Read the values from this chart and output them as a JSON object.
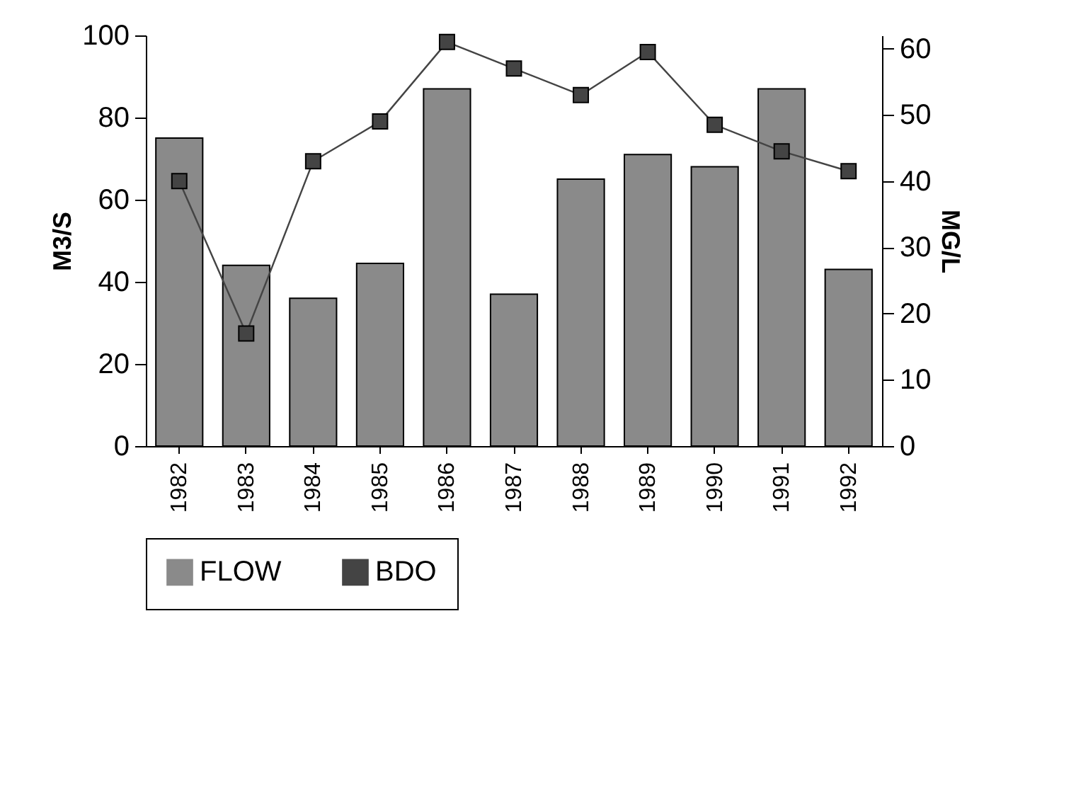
{
  "chart_data": {
    "type": "bar",
    "ylabel": "M3/S",
    "y2label": "MG/L",
    "categories": [
      "1982",
      "1983",
      "1984",
      "1985",
      "1986",
      "1987",
      "1988",
      "1989",
      "1990",
      "1991",
      "1992"
    ],
    "series": [
      {
        "name": "FLOW",
        "color": "#8a8a8a",
        "values": [
          75,
          44,
          36,
          44.5,
          87,
          37,
          65,
          71,
          68,
          87,
          43
        ]
      },
      {
        "name": "BDO",
        "type": "line",
        "axis": "y2",
        "color": "#444444",
        "marker": "square",
        "values": [
          40,
          17,
          43,
          49,
          61,
          57,
          53,
          59.5,
          48.5,
          44.5,
          41.5
        ]
      }
    ],
    "ylim": [
      0,
      100
    ],
    "yticks": [
      0,
      20,
      40,
      60,
      80,
      100
    ],
    "y2lim": [
      0,
      62
    ],
    "y2ticks": [
      0,
      10,
      20,
      30,
      40,
      50,
      60
    ],
    "grid": false,
    "legend": "bottom"
  }
}
